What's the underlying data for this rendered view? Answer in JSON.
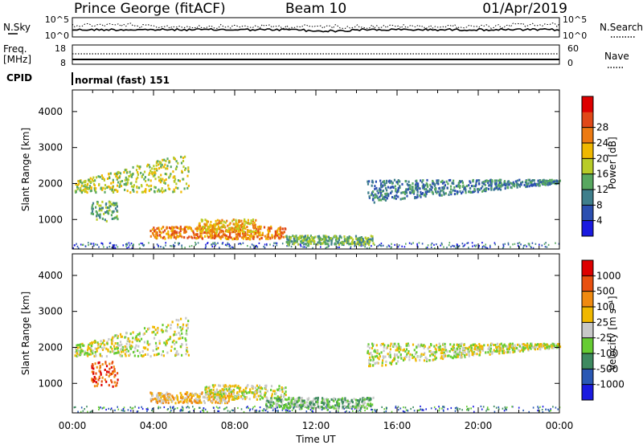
{
  "header": {
    "station": "Prince George (fitACF)",
    "beam": "Beam 10",
    "date": "01/Apr/2019"
  },
  "top_panels": {
    "nsky_label": "N.Sky",
    "nsearch_label": "N.Search",
    "noise_ticks": [
      "10^5",
      "10^0"
    ],
    "freq_label": "Freq.",
    "freq_unit": "[MHz]",
    "freq_ticks": [
      "18",
      "8"
    ],
    "nave_label": "Nave",
    "nave_ticks": [
      "60",
      "0"
    ],
    "cpid_label": "CPID",
    "cpid_value": "normal (fast) 151"
  },
  "chart_data": [
    {
      "type": "heatmap",
      "ylabel": "Slant Range [km]",
      "xlabel": "Time UT",
      "ylim": [
        180,
        4600
      ],
      "yticks": [
        1000,
        2000,
        3000,
        4000
      ],
      "xticks": [
        "00:00",
        "04:00",
        "08:00",
        "12:00",
        "16:00",
        "20:00",
        "00:00"
      ],
      "colorbar": {
        "label": "Power [dB]",
        "ticks": [
          "4",
          "8",
          "12",
          "16",
          "20",
          "24",
          "28"
        ],
        "colors": [
          "#1a1ae0",
          "#2b4fb0",
          "#3f7f8c",
          "#58a860",
          "#b8cc28",
          "#f0b800",
          "#ec7a12",
          "#e04818",
          "#dd0000"
        ]
      },
      "regions": [
        {
          "t0": 0.1,
          "t1": 5.7,
          "r0": 1750,
          "r1": 2050,
          "r1b": 2850,
          "level": 4
        },
        {
          "t0": 0.8,
          "t1": 2.2,
          "r0": 950,
          "r1": 1500,
          "level": 3
        },
        {
          "t0": 3.8,
          "t1": 10.5,
          "r0": 450,
          "r1": 800,
          "level": 6
        },
        {
          "t0": 6.2,
          "t1": 9.0,
          "r0": 650,
          "r1": 1000,
          "level": 5
        },
        {
          "t0": 10.5,
          "t1": 14.8,
          "r0": 300,
          "r1": 550,
          "level": 3
        },
        {
          "t0": 14.5,
          "t1": 24.0,
          "r0": 2100,
          "r1": 1450,
          "r1b": 2000,
          "level": 2
        }
      ]
    },
    {
      "type": "heatmap",
      "ylabel": "Slant Range [km]",
      "xlabel": "Time UT",
      "ylim": [
        180,
        4600
      ],
      "yticks": [
        1000,
        2000,
        3000,
        4000
      ],
      "xticks": [
        "00:00",
        "04:00",
        "08:00",
        "12:00",
        "16:00",
        "20:00",
        "00:00"
      ],
      "colorbar": {
        "label": "Velocity [m s⁻¹]",
        "ticks": [
          "1000",
          "500",
          "100",
          "25",
          "-25",
          "-100",
          "-500",
          "-1000"
        ],
        "colors": [
          "#1a1ae0",
          "#2a58b4",
          "#3e8a60",
          "#66cc33",
          "#c8c8c8",
          "#f0b800",
          "#f08a10",
          "#e85010",
          "#dd0000"
        ]
      },
      "regions": [
        {
          "t0": 0.1,
          "t1": 5.7,
          "r0": 1750,
          "r1": 2050,
          "r1b": 2850,
          "level": 4
        },
        {
          "t0": 0.9,
          "t1": 2.2,
          "r0": 900,
          "r1": 1600,
          "level": 7
        },
        {
          "t0": 3.8,
          "t1": 7.8,
          "r0": 450,
          "r1": 750,
          "level": 5
        },
        {
          "t0": 6.5,
          "t1": 10.5,
          "r0": 550,
          "r1": 950,
          "level": 4
        },
        {
          "t0": 9.5,
          "t1": 14.8,
          "r0": 300,
          "r1": 600,
          "level": 3
        },
        {
          "t0": 14.5,
          "t1": 24.0,
          "r0": 2100,
          "r1": 1450,
          "r1b": 2000,
          "level": 4
        }
      ]
    }
  ]
}
